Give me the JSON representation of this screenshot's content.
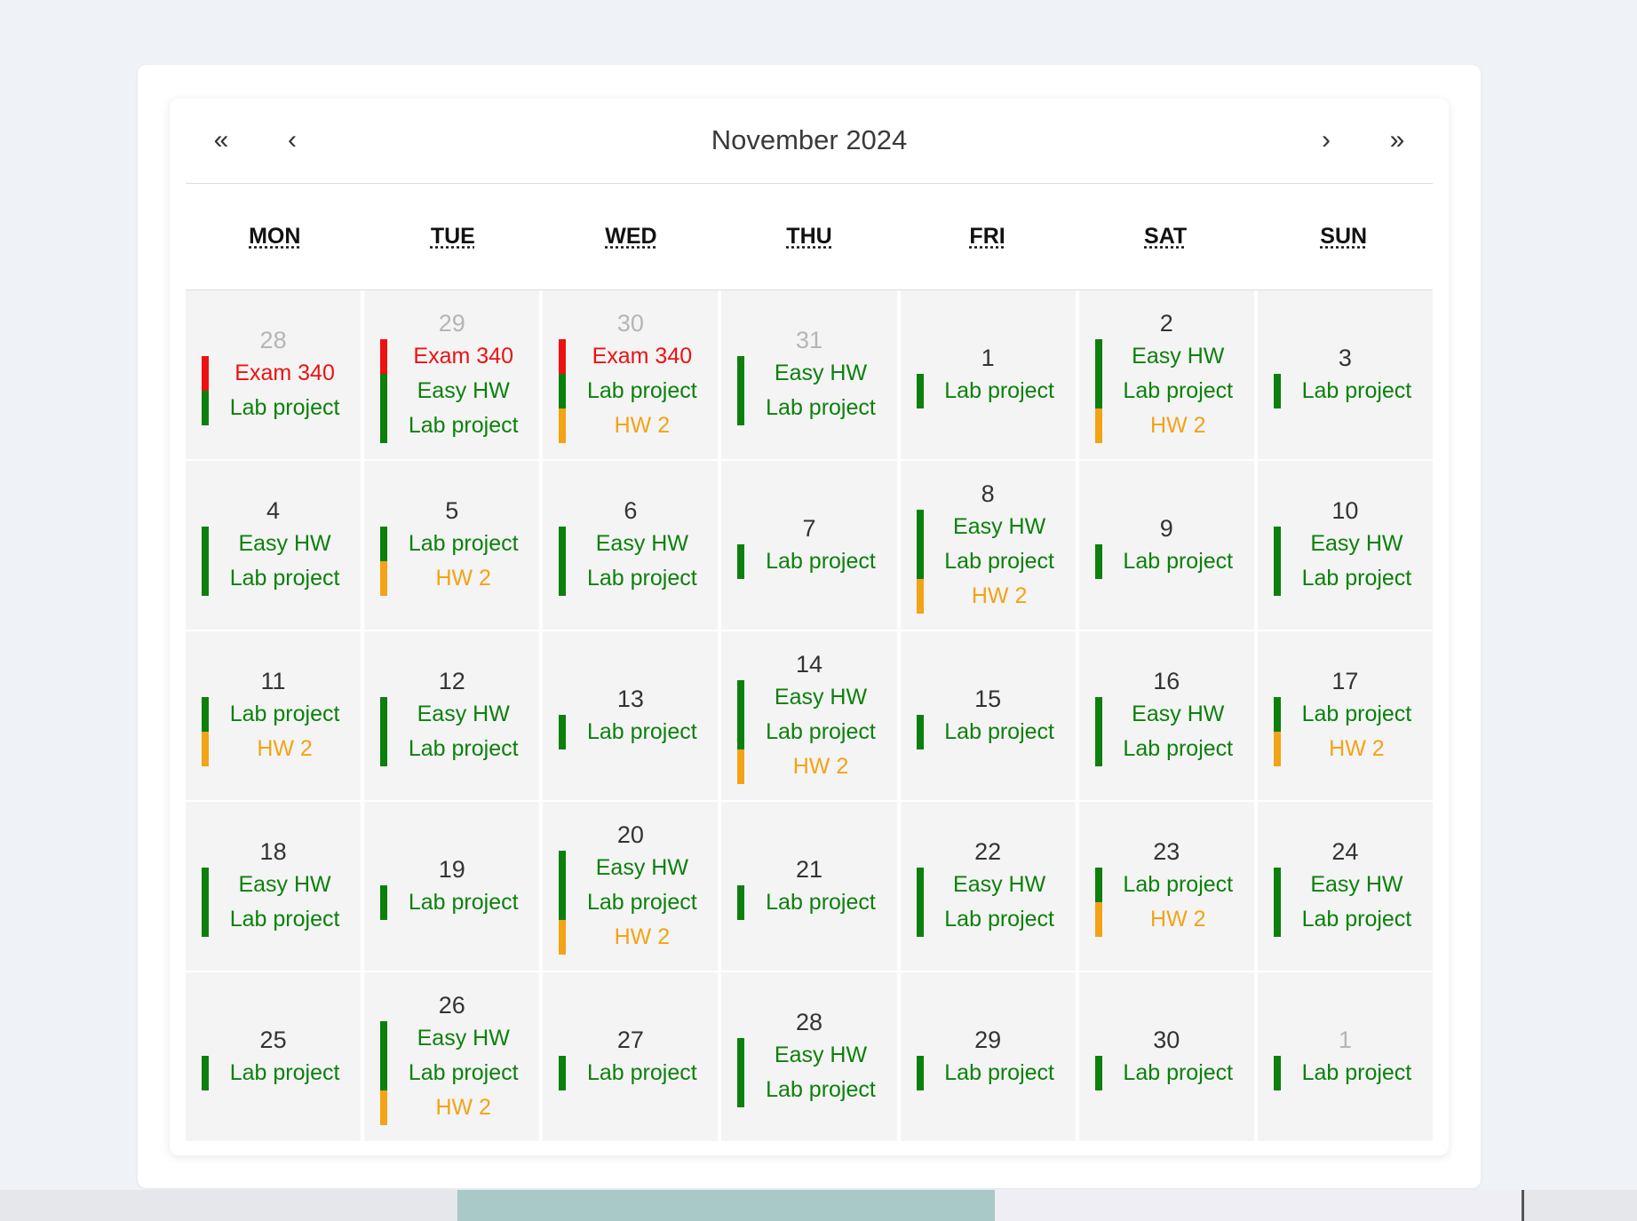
{
  "calendar": {
    "title": "November 2024",
    "nav": {
      "prev_year": "«",
      "prev_month": "‹",
      "next_month": "›",
      "next_year": "»"
    },
    "weekdays": [
      {
        "abbr": "MON",
        "full": "Monday"
      },
      {
        "abbr": "TUE",
        "full": "Tuesday"
      },
      {
        "abbr": "WED",
        "full": "Wednesday"
      },
      {
        "abbr": "THU",
        "full": "Thursday"
      },
      {
        "abbr": "FRI",
        "full": "Friday"
      },
      {
        "abbr": "SAT",
        "full": "Saturday"
      },
      {
        "abbr": "SUN",
        "full": "Sunday"
      }
    ],
    "colors": {
      "red": "#ee1111",
      "green": "#0c800c",
      "orange": "#f3a316"
    },
    "days": [
      {
        "day": "28",
        "other": true,
        "events": [
          {
            "label": "Exam 340",
            "color": "red"
          },
          {
            "label": "Lab project",
            "color": "green"
          }
        ]
      },
      {
        "day": "29",
        "other": true,
        "events": [
          {
            "label": "Exam 340",
            "color": "red"
          },
          {
            "label": "Easy HW",
            "color": "green"
          },
          {
            "label": "Lab project",
            "color": "green"
          }
        ]
      },
      {
        "day": "30",
        "other": true,
        "events": [
          {
            "label": "Exam 340",
            "color": "red"
          },
          {
            "label": "Lab project",
            "color": "green"
          },
          {
            "label": "HW 2",
            "color": "orange"
          }
        ]
      },
      {
        "day": "31",
        "other": true,
        "events": [
          {
            "label": "Easy HW",
            "color": "green"
          },
          {
            "label": "Lab project",
            "color": "green"
          }
        ]
      },
      {
        "day": "1",
        "other": false,
        "events": [
          {
            "label": "Lab project",
            "color": "green"
          }
        ]
      },
      {
        "day": "2",
        "other": false,
        "events": [
          {
            "label": "Easy HW",
            "color": "green"
          },
          {
            "label": "Lab project",
            "color": "green"
          },
          {
            "label": "HW 2",
            "color": "orange"
          }
        ]
      },
      {
        "day": "3",
        "other": false,
        "events": [
          {
            "label": "Lab project",
            "color": "green"
          }
        ]
      },
      {
        "day": "4",
        "other": false,
        "events": [
          {
            "label": "Easy HW",
            "color": "green"
          },
          {
            "label": "Lab project",
            "color": "green"
          }
        ]
      },
      {
        "day": "5",
        "other": false,
        "events": [
          {
            "label": "Lab project",
            "color": "green"
          },
          {
            "label": "HW 2",
            "color": "orange"
          }
        ]
      },
      {
        "day": "6",
        "other": false,
        "events": [
          {
            "label": "Easy HW",
            "color": "green"
          },
          {
            "label": "Lab project",
            "color": "green"
          }
        ]
      },
      {
        "day": "7",
        "other": false,
        "events": [
          {
            "label": "Lab project",
            "color": "green"
          }
        ]
      },
      {
        "day": "8",
        "other": false,
        "events": [
          {
            "label": "Easy HW",
            "color": "green"
          },
          {
            "label": "Lab project",
            "color": "green"
          },
          {
            "label": "HW 2",
            "color": "orange"
          }
        ]
      },
      {
        "day": "9",
        "other": false,
        "events": [
          {
            "label": "Lab project",
            "color": "green"
          }
        ]
      },
      {
        "day": "10",
        "other": false,
        "events": [
          {
            "label": "Easy HW",
            "color": "green"
          },
          {
            "label": "Lab project",
            "color": "green"
          }
        ]
      },
      {
        "day": "11",
        "other": false,
        "events": [
          {
            "label": "Lab project",
            "color": "green"
          },
          {
            "label": "HW 2",
            "color": "orange"
          }
        ]
      },
      {
        "day": "12",
        "other": false,
        "events": [
          {
            "label": "Easy HW",
            "color": "green"
          },
          {
            "label": "Lab project",
            "color": "green"
          }
        ]
      },
      {
        "day": "13",
        "other": false,
        "events": [
          {
            "label": "Lab project",
            "color": "green"
          }
        ]
      },
      {
        "day": "14",
        "other": false,
        "events": [
          {
            "label": "Easy HW",
            "color": "green"
          },
          {
            "label": "Lab project",
            "color": "green"
          },
          {
            "label": "HW 2",
            "color": "orange"
          }
        ]
      },
      {
        "day": "15",
        "other": false,
        "events": [
          {
            "label": "Lab project",
            "color": "green"
          }
        ]
      },
      {
        "day": "16",
        "other": false,
        "events": [
          {
            "label": "Easy HW",
            "color": "green"
          },
          {
            "label": "Lab project",
            "color": "green"
          }
        ]
      },
      {
        "day": "17",
        "other": false,
        "events": [
          {
            "label": "Lab project",
            "color": "green"
          },
          {
            "label": "HW 2",
            "color": "orange"
          }
        ]
      },
      {
        "day": "18",
        "other": false,
        "events": [
          {
            "label": "Easy HW",
            "color": "green"
          },
          {
            "label": "Lab project",
            "color": "green"
          }
        ]
      },
      {
        "day": "19",
        "other": false,
        "events": [
          {
            "label": "Lab project",
            "color": "green"
          }
        ]
      },
      {
        "day": "20",
        "other": false,
        "events": [
          {
            "label": "Easy HW",
            "color": "green"
          },
          {
            "label": "Lab project",
            "color": "green"
          },
          {
            "label": "HW 2",
            "color": "orange"
          }
        ]
      },
      {
        "day": "21",
        "other": false,
        "events": [
          {
            "label": "Lab project",
            "color": "green"
          }
        ]
      },
      {
        "day": "22",
        "other": false,
        "events": [
          {
            "label": "Easy HW",
            "color": "green"
          },
          {
            "label": "Lab project",
            "color": "green"
          }
        ]
      },
      {
        "day": "23",
        "other": false,
        "events": [
          {
            "label": "Lab project",
            "color": "green"
          },
          {
            "label": "HW 2",
            "color": "orange"
          }
        ]
      },
      {
        "day": "24",
        "other": false,
        "events": [
          {
            "label": "Easy HW",
            "color": "green"
          },
          {
            "label": "Lab project",
            "color": "green"
          }
        ]
      },
      {
        "day": "25",
        "other": false,
        "events": [
          {
            "label": "Lab project",
            "color": "green"
          }
        ]
      },
      {
        "day": "26",
        "other": false,
        "events": [
          {
            "label": "Easy HW",
            "color": "green"
          },
          {
            "label": "Lab project",
            "color": "green"
          },
          {
            "label": "HW 2",
            "color": "orange"
          }
        ]
      },
      {
        "day": "27",
        "other": false,
        "events": [
          {
            "label": "Lab project",
            "color": "green"
          }
        ]
      },
      {
        "day": "28",
        "other": false,
        "events": [
          {
            "label": "Easy HW",
            "color": "green"
          },
          {
            "label": "Lab project",
            "color": "green"
          }
        ]
      },
      {
        "day": "29",
        "other": false,
        "events": [
          {
            "label": "Lab project",
            "color": "green"
          }
        ]
      },
      {
        "day": "30",
        "other": false,
        "events": [
          {
            "label": "Lab project",
            "color": "green"
          }
        ]
      },
      {
        "day": "1",
        "other": true,
        "events": [
          {
            "label": "Lab project",
            "color": "green"
          }
        ]
      }
    ]
  }
}
